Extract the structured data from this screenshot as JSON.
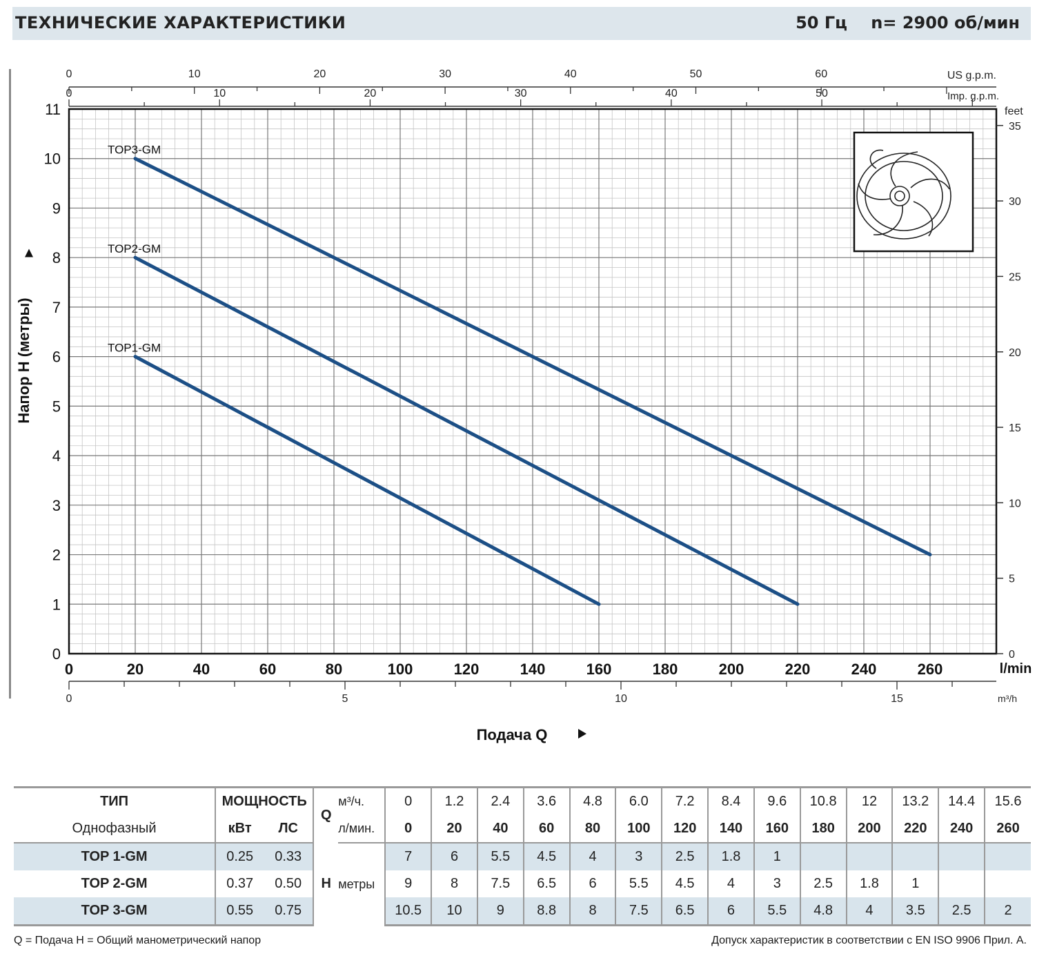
{
  "header": {
    "title": "ТЕХНИЧЕСКИЕ ХАРАКТЕРИСТИКИ",
    "frequency": "50 Гц",
    "speed": "n= 2900 об/мин"
  },
  "chart_data": {
    "type": "line",
    "ylabel": "Напор H (метры)",
    "xlabel": "Подача Q",
    "x_unit": "l/min",
    "y_right_unit": "feet",
    "top_axis_1_unit": "US g.p.m.",
    "top_axis_2_unit": "Imp. g.p.m.",
    "bottom_axis_2_unit": "m³/h",
    "xlim": [
      0,
      280
    ],
    "ylim": [
      0,
      11
    ],
    "grid": true,
    "x_ticks": [
      "0",
      "20",
      "40",
      "60",
      "80",
      "100",
      "120",
      "140",
      "160",
      "180",
      "200",
      "220",
      "240",
      "260"
    ],
    "y_ticks": [
      "0",
      "1",
      "2",
      "3",
      "4",
      "5",
      "6",
      "7",
      "8",
      "9",
      "10",
      "11"
    ],
    "feet_ticks": [
      "0",
      "5",
      "10",
      "15",
      "20",
      "25",
      "30",
      "35"
    ],
    "usgpm_ticks": [
      "0",
      "10",
      "20",
      "30",
      "40",
      "50",
      "60"
    ],
    "impgpm_ticks": [
      "0",
      "10",
      "20",
      "30",
      "40",
      "50"
    ],
    "m3h_ticks": [
      "0",
      "5",
      "10",
      "15"
    ],
    "series": [
      {
        "name": "TOP3-GM",
        "x": [
          20,
          260
        ],
        "y": [
          10,
          2
        ]
      },
      {
        "name": "TOP2-GM",
        "x": [
          20,
          220
        ],
        "y": [
          8,
          1
        ]
      },
      {
        "name": "TOP1-GM",
        "x": [
          20,
          160
        ],
        "y": [
          6,
          1
        ]
      }
    ],
    "line_color": "#1c4f86"
  },
  "table": {
    "type_header": "ТИП",
    "type_sub": "Однофазный",
    "power_header": "МОЩНОСТЬ",
    "kw": "кВт",
    "hp": "ЛС",
    "q_letter": "Q",
    "q_unit1": "м³/ч.",
    "q_unit2": "л/мин.",
    "h_letter": "H",
    "h_unit": "метры",
    "m3h": [
      "0",
      "1.2",
      "2.4",
      "3.6",
      "4.8",
      "6.0",
      "7.2",
      "8.4",
      "9.6",
      "10.8",
      "12",
      "13.2",
      "14.4",
      "15.6"
    ],
    "lmin": [
      "0",
      "20",
      "40",
      "60",
      "80",
      "100",
      "120",
      "140",
      "160",
      "180",
      "200",
      "220",
      "240",
      "260"
    ],
    "rows": [
      {
        "model": "TOP 1-GM",
        "kw": "0.25",
        "hp": "0.33",
        "h": [
          "7",
          "6",
          "5.5",
          "4.5",
          "4",
          "3",
          "2.5",
          "1.8",
          "1",
          "",
          "",
          "",
          "",
          ""
        ]
      },
      {
        "model": "TOP 2-GM",
        "kw": "0.37",
        "hp": "0.50",
        "h": [
          "9",
          "8",
          "7.5",
          "6.5",
          "6",
          "5.5",
          "4.5",
          "4",
          "3",
          "2.5",
          "1.8",
          "1",
          "",
          ""
        ]
      },
      {
        "model": "TOP 3-GM",
        "kw": "0.55",
        "hp": "0.75",
        "h": [
          "10.5",
          "10",
          "9",
          "8.8",
          "8",
          "7.5",
          "6.5",
          "6",
          "5.5",
          "4.8",
          "4",
          "3.5",
          "2.5",
          "2"
        ]
      }
    ]
  },
  "footer": {
    "legend_left": "Q = Подача   H = Общий манометрический напор",
    "note_right": "Допуск характеристик в соответствии с EN ISO 9906 Прил. А."
  }
}
